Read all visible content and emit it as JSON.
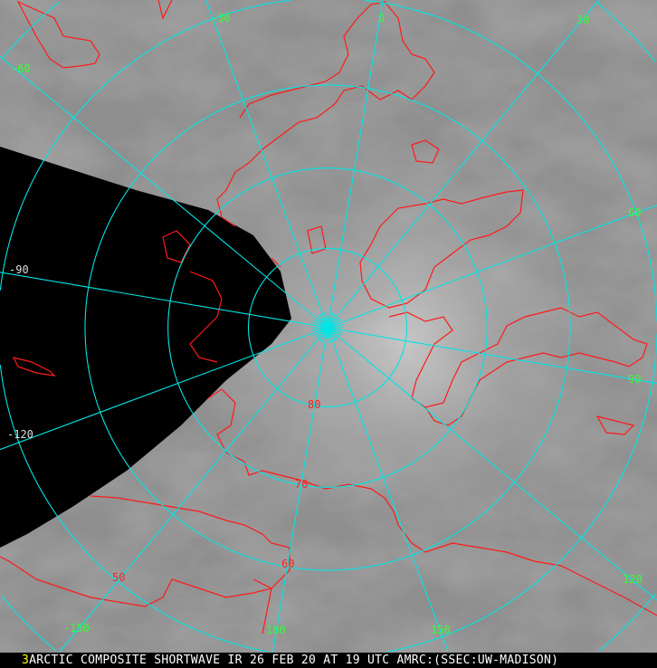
{
  "caption": {
    "frame_number": "3",
    "text": "ARCTIC COMPOSITE SHORTWAVE IR 26 FEB 20 AT 19 UTC AMRC:(SSEC:UW-MADISON)"
  },
  "grid": {
    "longitude_labels": [
      "0",
      "30",
      "60",
      "90",
      "120",
      "150",
      "180",
      "-150",
      "-120",
      "-90",
      "-60",
      "-30"
    ],
    "latitude_labels": [
      "80",
      "70",
      "60",
      "50"
    ]
  },
  "colors": {
    "grid": "#00e5e5",
    "coastline": "#ff1a1a",
    "lon_label": "#33ff33",
    "lat_label": "#ff2222",
    "no_data": "#000000"
  }
}
